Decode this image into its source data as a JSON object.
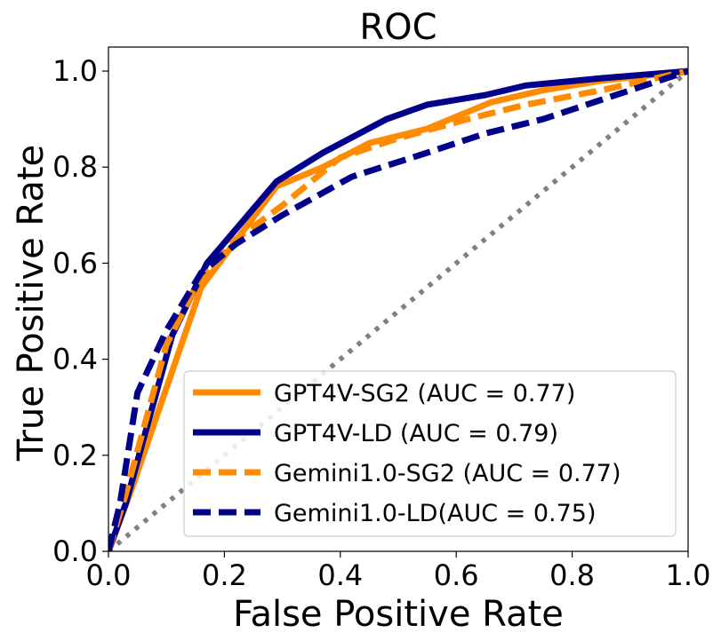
{
  "chart_data": {
    "type": "line",
    "title": "ROC",
    "xlabel": "False Positive Rate",
    "ylabel": "True Positive Rate",
    "xlim": [
      0,
      1
    ],
    "ylim": [
      0,
      1.05
    ],
    "x_ticks": [
      "0.0",
      "0.2",
      "0.4",
      "0.6",
      "0.8",
      "1.0"
    ],
    "y_ticks": [
      "0.0",
      "0.2",
      "0.4",
      "0.6",
      "0.8",
      "1.0"
    ],
    "x_tick_values": [
      0,
      0.2,
      0.4,
      0.6,
      0.8,
      1.0
    ],
    "y_tick_values": [
      0,
      0.2,
      0.4,
      0.6,
      0.8,
      1.0
    ],
    "legend_position": "lower-right",
    "series": [
      {
        "name": "GPT4V-SG2 (AUC = 0.77)",
        "color": "#ff8c00",
        "style": "solid",
        "points": [
          [
            0,
            0
          ],
          [
            0.04,
            0.13
          ],
          [
            0.16,
            0.55
          ],
          [
            0.29,
            0.76
          ],
          [
            0.37,
            0.8
          ],
          [
            0.45,
            0.85
          ],
          [
            0.55,
            0.88
          ],
          [
            0.66,
            0.935
          ],
          [
            0.75,
            0.96
          ],
          [
            0.85,
            0.98
          ],
          [
            1.0,
            1.0
          ]
        ]
      },
      {
        "name": "GPT4V-LD (AUC = 0.79)",
        "color": "#00008b",
        "style": "solid",
        "points": [
          [
            0,
            0
          ],
          [
            0.03,
            0.1
          ],
          [
            0.11,
            0.45
          ],
          [
            0.17,
            0.6
          ],
          [
            0.29,
            0.77
          ],
          [
            0.37,
            0.83
          ],
          [
            0.48,
            0.9
          ],
          [
            0.55,
            0.93
          ],
          [
            0.65,
            0.95
          ],
          [
            0.72,
            0.97
          ],
          [
            0.85,
            0.985
          ],
          [
            1.0,
            1.0
          ]
        ]
      },
      {
        "name": "Gemini1.0-SG2 (AUC = 0.77)",
        "color": "#ff8c00",
        "style": "dashed",
        "points": [
          [
            0,
            0
          ],
          [
            0.03,
            0.12
          ],
          [
            0.1,
            0.43
          ],
          [
            0.15,
            0.55
          ],
          [
            0.22,
            0.65
          ],
          [
            0.3,
            0.72
          ],
          [
            0.4,
            0.82
          ],
          [
            0.5,
            0.86
          ],
          [
            0.62,
            0.9
          ],
          [
            0.72,
            0.93
          ],
          [
            0.85,
            0.96
          ],
          [
            1.0,
            1.0
          ]
        ]
      },
      {
        "name": "Gemini1.0-LD(AUC = 0.75)",
        "color": "#00008b",
        "style": "dashed",
        "points": [
          [
            0,
            0
          ],
          [
            0.02,
            0.1
          ],
          [
            0.05,
            0.33
          ],
          [
            0.1,
            0.46
          ],
          [
            0.16,
            0.58
          ],
          [
            0.22,
            0.64
          ],
          [
            0.3,
            0.7
          ],
          [
            0.42,
            0.78
          ],
          [
            0.55,
            0.83
          ],
          [
            0.65,
            0.87
          ],
          [
            0.75,
            0.9
          ],
          [
            0.85,
            0.94
          ],
          [
            1.0,
            1.0
          ]
        ]
      }
    ],
    "diagonal": {
      "points": [
        [
          0,
          0
        ],
        [
          1,
          1
        ]
      ],
      "color": "#808080",
      "style": "dotted"
    }
  }
}
